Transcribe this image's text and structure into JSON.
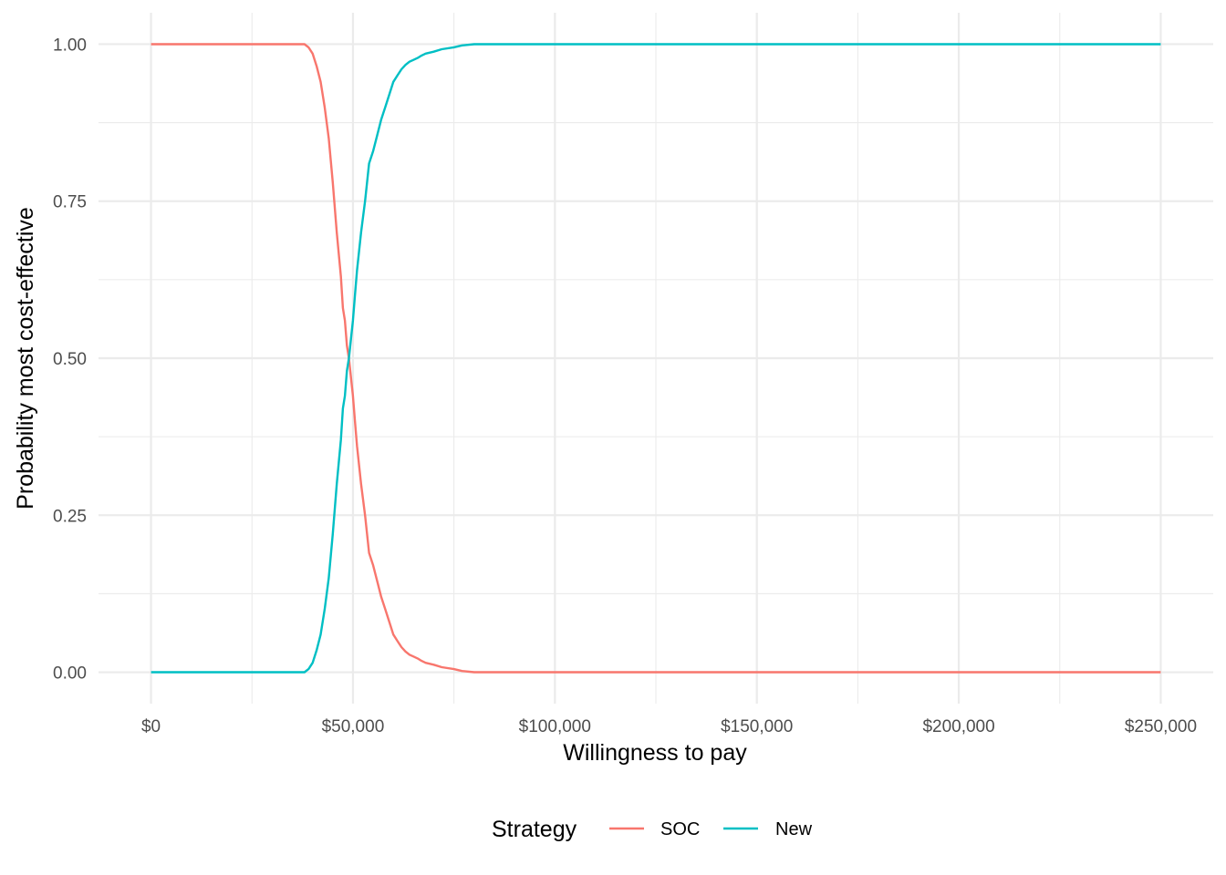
{
  "chart_data": {
    "type": "line",
    "title": "",
    "xlabel": "Willingness to pay",
    "ylabel": "Probability most cost-effective",
    "xlim": [
      -13000,
      263000
    ],
    "ylim": [
      -0.05,
      1.05
    ],
    "x_ticks": [
      0,
      50000,
      100000,
      150000,
      200000,
      250000
    ],
    "x_tick_labels": [
      "$0",
      "$50,000",
      "$100,000",
      "$150,000",
      "$200,000",
      "$250,000"
    ],
    "x_minor_ticks": [
      25000,
      75000,
      125000,
      175000,
      225000
    ],
    "y_ticks": [
      0,
      0.25,
      0.5,
      0.75,
      1.0
    ],
    "y_tick_labels": [
      "0.00",
      "0.25",
      "0.50",
      "0.75",
      "1.00"
    ],
    "y_minor_ticks": [
      0.125,
      0.375,
      0.625,
      0.875
    ],
    "grid": true,
    "legend": {
      "title": "Strategy",
      "position": "bottom"
    },
    "series": [
      {
        "name": "SOC",
        "color": "#F8766D",
        "x": [
          0,
          38000,
          39000,
          40000,
          41000,
          42000,
          43000,
          44000,
          45000,
          46000,
          47000,
          47500,
          48000,
          48500,
          49000,
          49500,
          50000,
          50500,
          51000,
          51500,
          52000,
          53000,
          54000,
          55000,
          56000,
          57000,
          58000,
          59000,
          60000,
          61000,
          62000,
          63000,
          64000,
          65000,
          66000,
          67000,
          68000,
          70000,
          72000,
          75000,
          77000,
          80000,
          250000
        ],
        "y": [
          1.0,
          1.0,
          0.995,
          0.985,
          0.965,
          0.94,
          0.9,
          0.85,
          0.78,
          0.7,
          0.63,
          0.58,
          0.56,
          0.52,
          0.5,
          0.47,
          0.44,
          0.4,
          0.36,
          0.33,
          0.3,
          0.25,
          0.19,
          0.17,
          0.145,
          0.12,
          0.1,
          0.08,
          0.06,
          0.05,
          0.04,
          0.033,
          0.028,
          0.025,
          0.022,
          0.018,
          0.015,
          0.012,
          0.008,
          0.005,
          0.002,
          0.0,
          0.0
        ]
      },
      {
        "name": "New",
        "color": "#00BFC4",
        "x": [
          0,
          38000,
          39000,
          40000,
          41000,
          42000,
          43000,
          44000,
          45000,
          46000,
          47000,
          47500,
          48000,
          48500,
          49000,
          49500,
          50000,
          50500,
          51000,
          51500,
          52000,
          53000,
          54000,
          55000,
          56000,
          57000,
          58000,
          59000,
          60000,
          61000,
          62000,
          63000,
          64000,
          65000,
          66000,
          67000,
          68000,
          70000,
          72000,
          75000,
          77000,
          80000,
          250000
        ],
        "y": [
          0.0,
          0.0,
          0.005,
          0.015,
          0.035,
          0.06,
          0.1,
          0.15,
          0.22,
          0.3,
          0.37,
          0.42,
          0.44,
          0.48,
          0.5,
          0.53,
          0.56,
          0.6,
          0.64,
          0.67,
          0.7,
          0.75,
          0.81,
          0.83,
          0.855,
          0.88,
          0.9,
          0.92,
          0.94,
          0.95,
          0.96,
          0.967,
          0.972,
          0.975,
          0.978,
          0.982,
          0.985,
          0.988,
          0.992,
          0.995,
          0.998,
          1.0,
          1.0
        ]
      }
    ]
  }
}
